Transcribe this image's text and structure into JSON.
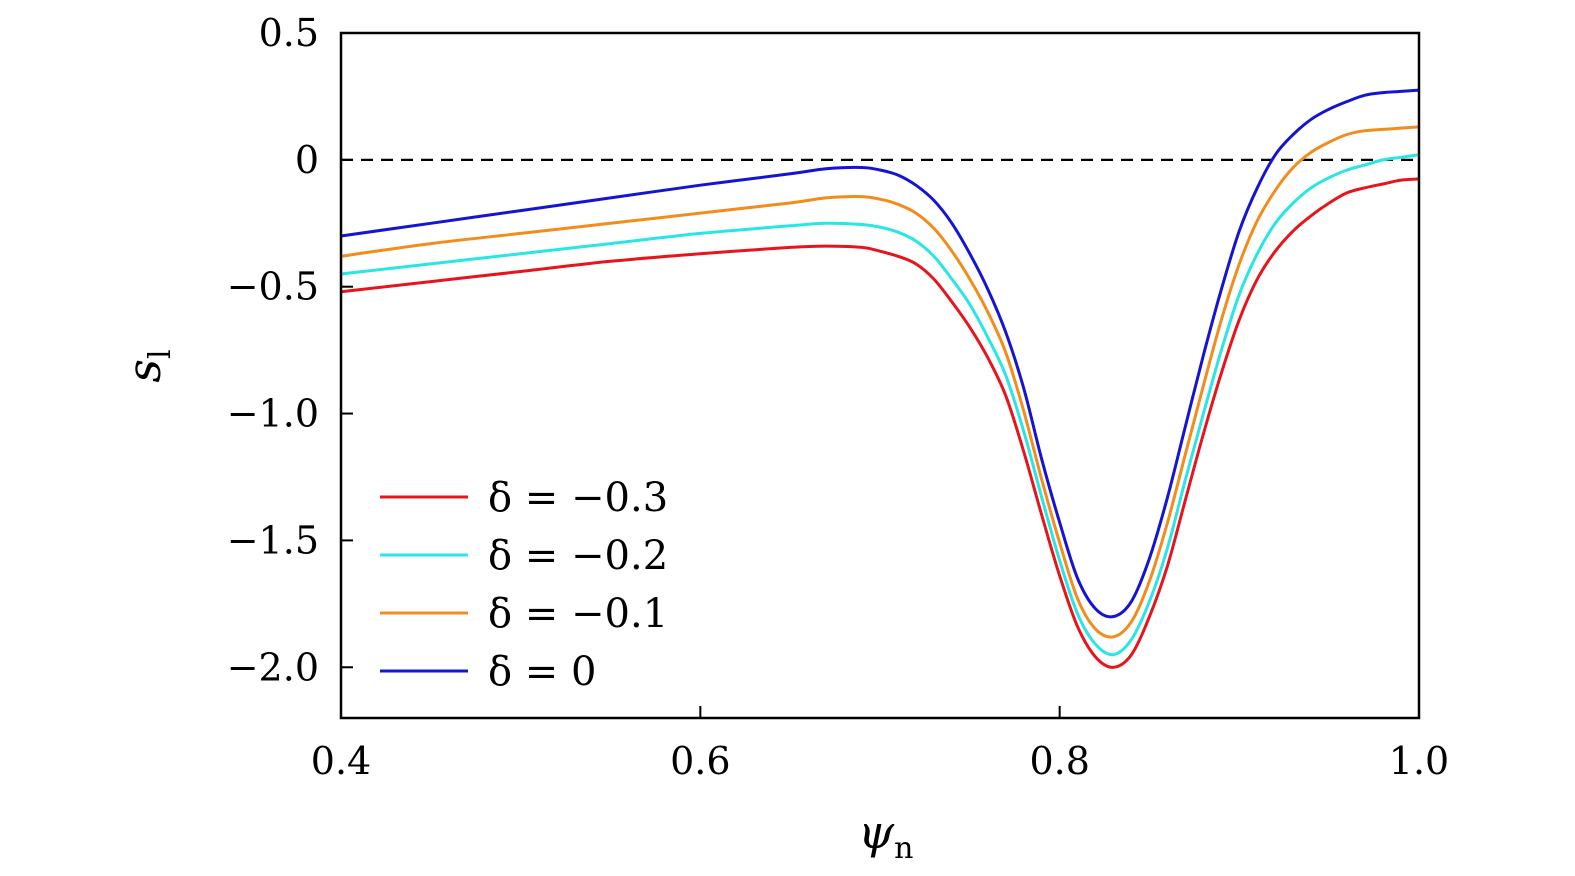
{
  "chart_data": {
    "type": "line",
    "title": "",
    "xlabel": "ψ",
    "xlabel_sub": "n",
    "ylabel": "s",
    "ylabel_sub": "l",
    "xlim": [
      0.4,
      1.0
    ],
    "ylim": [
      -2.2,
      0.5
    ],
    "xticks": [
      0.4,
      0.6,
      0.8,
      1.0
    ],
    "xtick_labels": [
      "0.4",
      "0.6",
      "0.8",
      "1.0"
    ],
    "yticks": [
      0.5,
      0,
      -0.5,
      -1.0,
      -1.5,
      -2.0
    ],
    "ytick_labels": [
      "0.5",
      "0",
      "−0.5",
      "−1.0",
      "−1.5",
      "−2.0"
    ],
    "reference_line": {
      "y": 0,
      "style": "dashed",
      "color": "#000000"
    },
    "legend_position": "bottom-left",
    "x": [
      0.4,
      0.45,
      0.5,
      0.55,
      0.6,
      0.65,
      0.67,
      0.69,
      0.7,
      0.71,
      0.72,
      0.73,
      0.74,
      0.75,
      0.76,
      0.77,
      0.78,
      0.79,
      0.8,
      0.81,
      0.82,
      0.83,
      0.84,
      0.85,
      0.86,
      0.87,
      0.88,
      0.89,
      0.9,
      0.91,
      0.92,
      0.93,
      0.94,
      0.95,
      0.96,
      0.97,
      0.98,
      0.99,
      1.0
    ],
    "series": [
      {
        "name": "δ = −0.3",
        "color": "#e8141c",
        "values": [
          -0.52,
          -0.48,
          -0.44,
          -0.4,
          -0.37,
          -0.345,
          -0.34,
          -0.345,
          -0.36,
          -0.38,
          -0.41,
          -0.47,
          -0.56,
          -0.66,
          -0.78,
          -0.93,
          -1.15,
          -1.4,
          -1.64,
          -1.84,
          -1.96,
          -2.0,
          -1.95,
          -1.8,
          -1.6,
          -1.34,
          -1.08,
          -0.84,
          -0.63,
          -0.47,
          -0.36,
          -0.28,
          -0.22,
          -0.17,
          -0.13,
          -0.11,
          -0.095,
          -0.08,
          -0.075
        ]
      },
      {
        "name": "δ = −0.2",
        "color": "#2ae5e5",
        "values": [
          -0.45,
          -0.41,
          -0.37,
          -0.33,
          -0.29,
          -0.26,
          -0.25,
          -0.255,
          -0.265,
          -0.285,
          -0.32,
          -0.38,
          -0.47,
          -0.57,
          -0.7,
          -0.85,
          -1.07,
          -1.33,
          -1.58,
          -1.79,
          -1.91,
          -1.95,
          -1.89,
          -1.74,
          -1.53,
          -1.26,
          -1.0,
          -0.75,
          -0.53,
          -0.37,
          -0.25,
          -0.17,
          -0.11,
          -0.07,
          -0.04,
          -0.02,
          0.0,
          0.01,
          0.02
        ]
      },
      {
        "name": "δ = −0.1",
        "color": "#f28c1c",
        "values": [
          -0.38,
          -0.33,
          -0.29,
          -0.25,
          -0.21,
          -0.17,
          -0.15,
          -0.145,
          -0.155,
          -0.175,
          -0.21,
          -0.27,
          -0.36,
          -0.47,
          -0.6,
          -0.76,
          -0.99,
          -1.26,
          -1.51,
          -1.73,
          -1.85,
          -1.88,
          -1.82,
          -1.66,
          -1.43,
          -1.16,
          -0.89,
          -0.63,
          -0.41,
          -0.24,
          -0.12,
          -0.03,
          0.03,
          0.07,
          0.1,
          0.115,
          0.12,
          0.125,
          0.13
        ]
      },
      {
        "name": "δ = 0",
        "color": "#1414d2",
        "values": [
          -0.3,
          -0.25,
          -0.2,
          -0.15,
          -0.1,
          -0.055,
          -0.035,
          -0.03,
          -0.04,
          -0.06,
          -0.1,
          -0.16,
          -0.25,
          -0.37,
          -0.51,
          -0.68,
          -0.9,
          -1.18,
          -1.43,
          -1.65,
          -1.77,
          -1.8,
          -1.74,
          -1.57,
          -1.33,
          -1.05,
          -0.77,
          -0.51,
          -0.28,
          -0.11,
          0.02,
          0.1,
          0.16,
          0.2,
          0.23,
          0.255,
          0.265,
          0.27,
          0.275
        ]
      }
    ]
  }
}
